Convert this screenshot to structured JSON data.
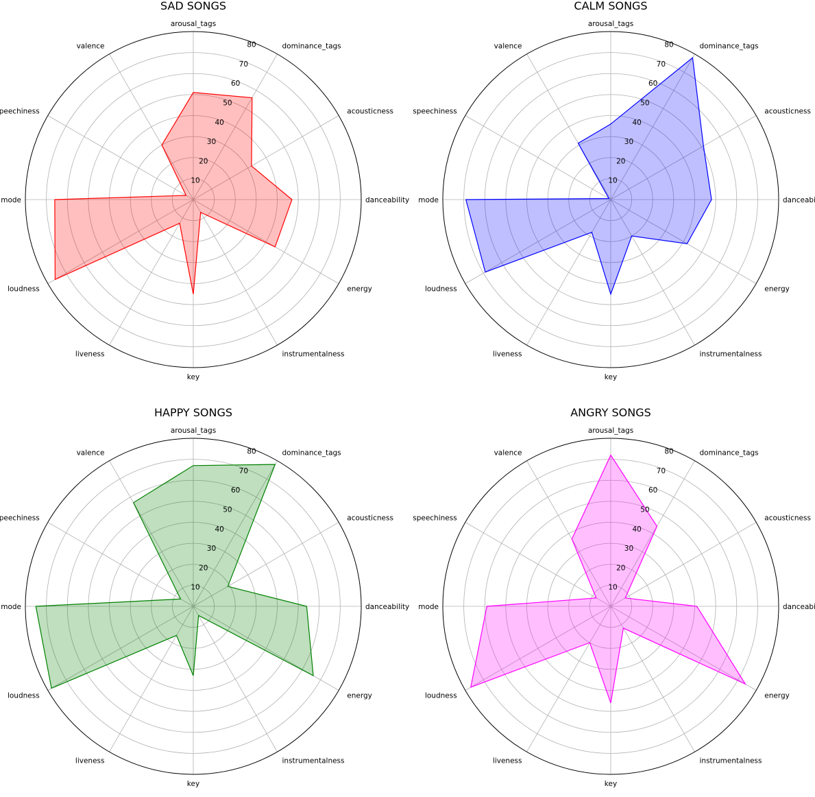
{
  "chart_data": [
    {
      "type": "radar",
      "title": "SAD SONGS",
      "color": "#ff0000",
      "categories": [
        "danceability",
        "acousticness",
        "dominance_tags",
        "arousal_tags",
        "valence",
        "speechiness",
        "mode",
        "loudness",
        "liveness",
        "key",
        "instrumentalness",
        "energy"
      ],
      "values": [
        47,
        32,
        56,
        51,
        30,
        4,
        66,
        76,
        13,
        45,
        7,
        45
      ],
      "rticks": [
        10,
        20,
        30,
        40,
        50,
        60,
        70,
        80
      ],
      "rlim": [
        0,
        80
      ],
      "grid": true
    },
    {
      "type": "radar",
      "title": "CALM SONGS",
      "color": "#0000ff",
      "categories": [
        "danceability",
        "acousticness",
        "dominance_tags",
        "arousal_tags",
        "valence",
        "speechiness",
        "mode",
        "loudness",
        "liveness",
        "key",
        "instrumentalness",
        "energy"
      ],
      "values": [
        48,
        51,
        78,
        36,
        31,
        1,
        69,
        69,
        18,
        45,
        20,
        42
      ],
      "rticks": [
        10,
        20,
        30,
        40,
        50,
        60,
        70,
        80
      ],
      "rlim": [
        0,
        80
      ],
      "grid": true
    },
    {
      "type": "radar",
      "title": "HAPPY SONGS",
      "color": "#008000",
      "categories": [
        "danceability",
        "acousticness",
        "dominance_tags",
        "arousal_tags",
        "valence",
        "speechiness",
        "mode",
        "loudness",
        "liveness",
        "key",
        "instrumentalness",
        "energy"
      ],
      "values": [
        54,
        19,
        78,
        67,
        57,
        7,
        75,
        78,
        16,
        33,
        5,
        66
      ],
      "rticks": [
        10,
        20,
        30,
        40,
        50,
        60,
        70,
        80
      ],
      "rlim": [
        0,
        80
      ],
      "grid": true
    },
    {
      "type": "radar",
      "title": "ANGRY SONGS",
      "color": "#ff00ff",
      "categories": [
        "danceability",
        "acousticness",
        "dominance_tags",
        "arousal_tags",
        "valence",
        "speechiness",
        "mode",
        "loudness",
        "liveness",
        "key",
        "instrumentalness",
        "energy"
      ],
      "values": [
        41,
        8,
        44,
        72,
        37,
        8,
        59,
        77,
        20,
        46,
        12,
        74
      ],
      "rticks": [
        10,
        20,
        30,
        40,
        50,
        60,
        70,
        80
      ],
      "rlim": [
        0,
        80
      ],
      "grid": true
    }
  ]
}
